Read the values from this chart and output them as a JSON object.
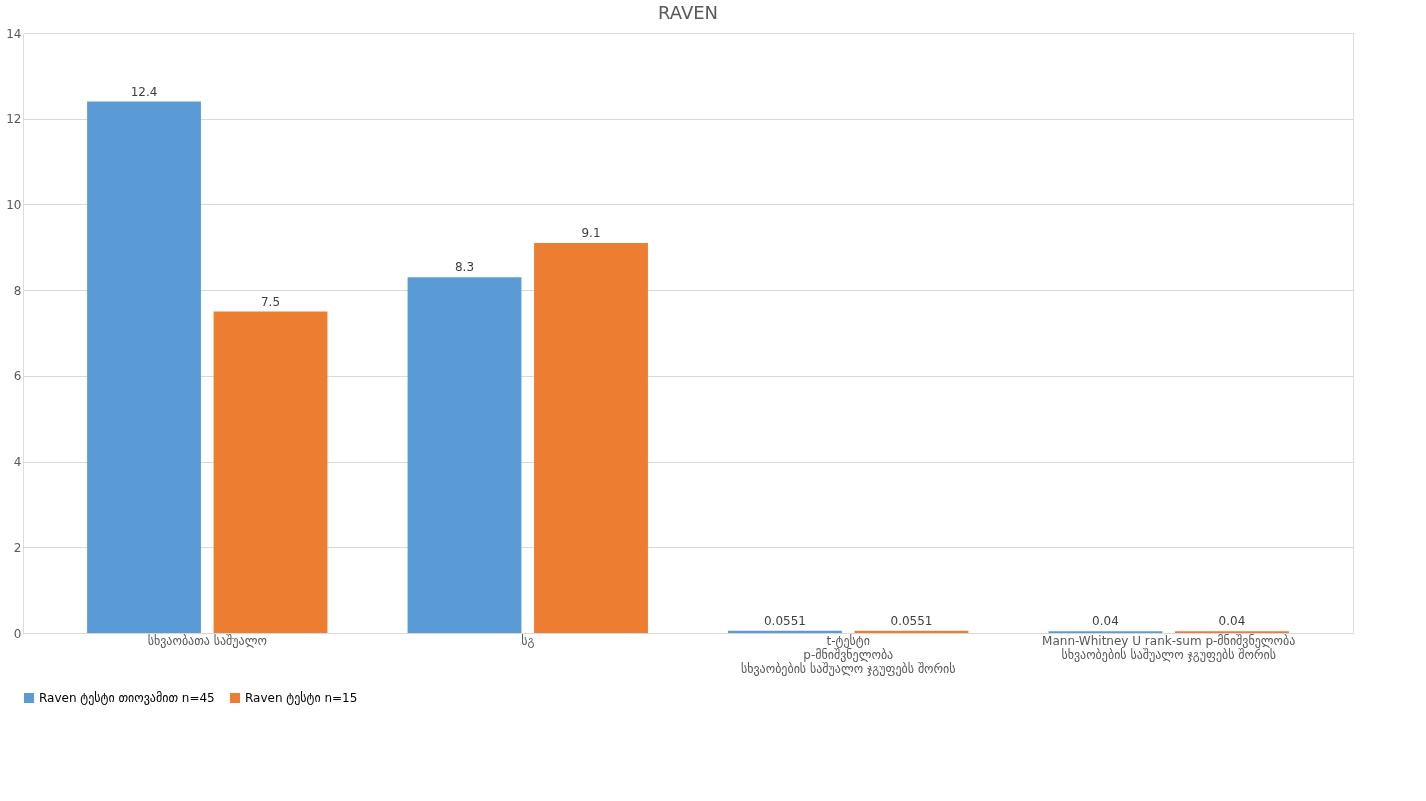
{
  "chart_data": {
    "type": "bar",
    "title": "RAVEN",
    "categories": [
      "სხვაობათა საშუალო",
      "სგ",
      "t-ტესტი\np-მნიშვნელობა\nსხვაობების საშუალო   ჯგუფებს შორის",
      "Mann-Whitney U rank-sum p-მნიშვნელობა\nსხვაობების საშუალო  ჯგუფებს  შორის"
    ],
    "series": [
      {
        "name": "Raven ტესტი  თიოვამით n=45",
        "color": "#5b9bd5",
        "values": [
          12.4,
          8.3,
          0.0551,
          0.04
        ]
      },
      {
        "name": "Raven ტესტი n=15",
        "color": "#ed7d31",
        "values": [
          7.5,
          9.1,
          0.0551,
          0.04
        ]
      }
    ],
    "ylim": [
      0,
      14
    ],
    "yticks": [
      0,
      2,
      4,
      6,
      8,
      10,
      12,
      14
    ],
    "grid": "y",
    "legend": "bottom",
    "data_labels": true
  }
}
